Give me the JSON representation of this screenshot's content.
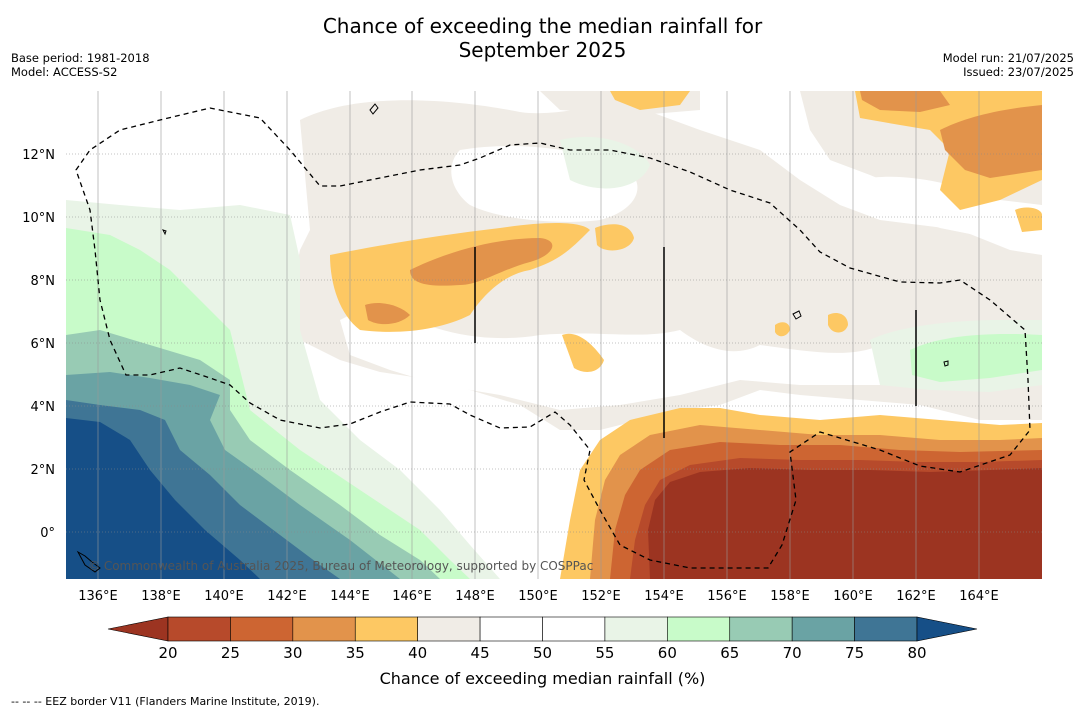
{
  "title_line1": "Chance of exceeding the median rainfall for",
  "title_line2": "September 2025",
  "meta_left": {
    "base_period": "Base period: 1981-2018",
    "model": "Model: ACCESS-S2"
  },
  "meta_right": {
    "model_run": "Model run: 21/07/2025",
    "issued": "Issued: 23/07/2025"
  },
  "map": {
    "lon_ticks": [
      "136°E",
      "138°E",
      "140°E",
      "142°E",
      "144°E",
      "146°E",
      "148°E",
      "150°E",
      "152°E",
      "154°E",
      "156°E",
      "158°E",
      "160°E",
      "162°E",
      "164°E"
    ],
    "lat_ticks": [
      "12°N",
      "10°N",
      "8°N",
      "6°N",
      "4°N",
      "2°N",
      "0°"
    ],
    "lon_range": [
      135,
      166
    ],
    "lat_range": [
      -1.5,
      14
    ],
    "copyright": "© Commonwealth of Australia 2025, Bureau of Meteorology, supported by COSPPac",
    "colorbar": {
      "ticks": [
        "20",
        "25",
        "30",
        "35",
        "40",
        "45",
        "50",
        "55",
        "60",
        "65",
        "70",
        "75",
        "80"
      ],
      "colors": [
        "#9c3421",
        "#b74a2b",
        "#cd6532",
        "#e2934b",
        "#fdc863",
        "#f0ece6",
        "#ffffff",
        "#ffffff",
        "#e9f4e7",
        "#c8fbc9",
        "#98cbb4",
        "#6aa3a4",
        "#3f7595",
        "#164f87"
      ],
      "label": "Chance of exceeding median rainfall (%)"
    }
  },
  "footnote": "--  --  -- EEZ border V11 (Flanders Marine Institute, 2019)."
}
